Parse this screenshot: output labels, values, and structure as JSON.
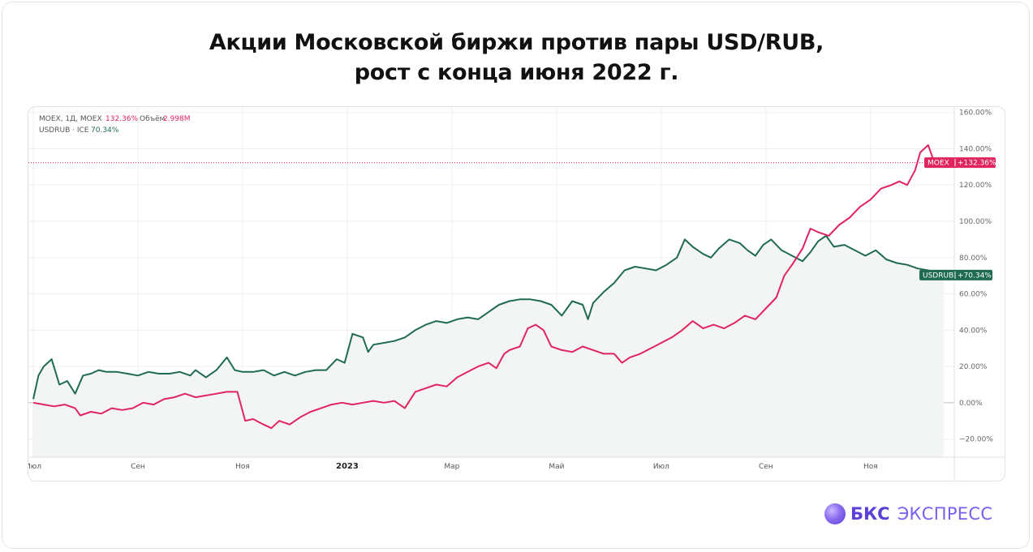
{
  "title": {
    "line1": "Акции Московской биржи против пары USD/RUB,",
    "line2": "рост с конца июня 2022 г."
  },
  "legend": {
    "moex": {
      "prefix": "MOEX, 1Д, MOEX",
      "value": "132.36%",
      "volume_label": "Объём",
      "volume_value": "2.998M"
    },
    "usdrub": {
      "prefix": "USDRUB · ICE",
      "value": "70.34%"
    }
  },
  "brand": {
    "name_bold": "БКС",
    "name_regular": "ЭКСПРЕСС"
  },
  "colors": {
    "moex": "#e0245e",
    "usdrub": "#1f6b52",
    "area_fill": "#f2f5f3"
  },
  "chart_data": {
    "type": "line",
    "title": "Акции Московской биржи против пары USD/RUB, рост с конца июня 2022 г.",
    "xlabel": "",
    "ylabel": "",
    "ylim": [
      -30,
      163
    ],
    "yticks": [
      -20,
      0,
      20,
      40,
      60,
      80,
      100,
      120,
      140,
      160
    ],
    "ytick_labels": [
      "−20.00%",
      "0.00%",
      "20.00%",
      "40.00%",
      "60.00%",
      "80.00%",
      "100.00%",
      "120.00%",
      "140.00%",
      "160.00%"
    ],
    "x_ticks": [
      {
        "label": "Июл",
        "t": 0,
        "bold": false
      },
      {
        "label": "Сен",
        "t": 2,
        "bold": false
      },
      {
        "label": "Ноя",
        "t": 4,
        "bold": false
      },
      {
        "label": "2023",
        "t": 6,
        "bold": true
      },
      {
        "label": "Мар",
        "t": 8,
        "bold": false
      },
      {
        "label": "Май",
        "t": 10,
        "bold": false
      },
      {
        "label": "Июл",
        "t": 12,
        "bold": false
      },
      {
        "label": "Сен",
        "t": 14,
        "bold": false
      },
      {
        "label": "Ноя",
        "t": 16,
        "bold": false
      }
    ],
    "x_unit": "months since end of June 2022",
    "xlim": [
      0,
      17.6
    ],
    "grid": true,
    "series": [
      {
        "name": "MOEX",
        "last_value_label": "+132.36%",
        "points": [
          [
            0,
            0
          ],
          [
            0.2,
            -1
          ],
          [
            0.4,
            -2
          ],
          [
            0.6,
            -1
          ],
          [
            0.8,
            -3
          ],
          [
            0.9,
            -7
          ],
          [
            1.1,
            -5
          ],
          [
            1.3,
            -6
          ],
          [
            1.5,
            -3
          ],
          [
            1.7,
            -4
          ],
          [
            1.9,
            -3
          ],
          [
            2.1,
            0
          ],
          [
            2.3,
            -1
          ],
          [
            2.5,
            2
          ],
          [
            2.7,
            3
          ],
          [
            2.9,
            5
          ],
          [
            3.1,
            3
          ],
          [
            3.3,
            4
          ],
          [
            3.5,
            5
          ],
          [
            3.7,
            6
          ],
          [
            3.9,
            6
          ],
          [
            4.05,
            -10
          ],
          [
            4.2,
            -9
          ],
          [
            4.4,
            -12
          ],
          [
            4.55,
            -14
          ],
          [
            4.7,
            -10
          ],
          [
            4.9,
            -12
          ],
          [
            5.1,
            -8
          ],
          [
            5.3,
            -5
          ],
          [
            5.5,
            -3
          ],
          [
            5.7,
            -1
          ],
          [
            5.9,
            0
          ],
          [
            6.1,
            -1
          ],
          [
            6.3,
            0
          ],
          [
            6.5,
            1
          ],
          [
            6.7,
            0
          ],
          [
            6.9,
            1
          ],
          [
            7.1,
            -3
          ],
          [
            7.3,
            6
          ],
          [
            7.5,
            8
          ],
          [
            7.7,
            10
          ],
          [
            7.9,
            9
          ],
          [
            8.1,
            14
          ],
          [
            8.3,
            17
          ],
          [
            8.5,
            20
          ],
          [
            8.7,
            22
          ],
          [
            8.85,
            19
          ],
          [
            9.0,
            27
          ],
          [
            9.1,
            29
          ],
          [
            9.3,
            31
          ],
          [
            9.45,
            41
          ],
          [
            9.6,
            43
          ],
          [
            9.75,
            40
          ],
          [
            9.9,
            31
          ],
          [
            10.1,
            29
          ],
          [
            10.3,
            28
          ],
          [
            10.5,
            31
          ],
          [
            10.7,
            29
          ],
          [
            10.9,
            27
          ],
          [
            11.1,
            27
          ],
          [
            11.25,
            22
          ],
          [
            11.4,
            25
          ],
          [
            11.6,
            27
          ],
          [
            11.8,
            30
          ],
          [
            12.0,
            33
          ],
          [
            12.2,
            36
          ],
          [
            12.4,
            40
          ],
          [
            12.6,
            45
          ],
          [
            12.8,
            41
          ],
          [
            13.0,
            43
          ],
          [
            13.2,
            41
          ],
          [
            13.4,
            44
          ],
          [
            13.6,
            48
          ],
          [
            13.8,
            46
          ],
          [
            14.0,
            52
          ],
          [
            14.2,
            58
          ],
          [
            14.35,
            70
          ],
          [
            14.5,
            76
          ],
          [
            14.7,
            85
          ],
          [
            14.85,
            96
          ],
          [
            15.0,
            94
          ],
          [
            15.2,
            92
          ],
          [
            15.4,
            98
          ],
          [
            15.6,
            102
          ],
          [
            15.8,
            108
          ],
          [
            16.0,
            112
          ],
          [
            16.2,
            118
          ],
          [
            16.4,
            120
          ],
          [
            16.55,
            122
          ],
          [
            16.7,
            120
          ],
          [
            16.85,
            128
          ],
          [
            16.95,
            138
          ],
          [
            17.1,
            142
          ],
          [
            17.25,
            130
          ],
          [
            17.4,
            132.36
          ]
        ]
      },
      {
        "name": "USDRUB",
        "last_value_label": "+70.34%",
        "points": [
          [
            0,
            2
          ],
          [
            0.1,
            15
          ],
          [
            0.2,
            20
          ],
          [
            0.35,
            24
          ],
          [
            0.5,
            10
          ],
          [
            0.65,
            12
          ],
          [
            0.8,
            5
          ],
          [
            0.95,
            15
          ],
          [
            1.1,
            16
          ],
          [
            1.25,
            18
          ],
          [
            1.4,
            17
          ],
          [
            1.6,
            17
          ],
          [
            1.8,
            16
          ],
          [
            2.0,
            15
          ],
          [
            2.2,
            17
          ],
          [
            2.4,
            16
          ],
          [
            2.6,
            16
          ],
          [
            2.8,
            17
          ],
          [
            3.0,
            15
          ],
          [
            3.1,
            18
          ],
          [
            3.3,
            14
          ],
          [
            3.5,
            18
          ],
          [
            3.7,
            25
          ],
          [
            3.85,
            18
          ],
          [
            4.0,
            17
          ],
          [
            4.2,
            17
          ],
          [
            4.4,
            18
          ],
          [
            4.6,
            15
          ],
          [
            4.8,
            17
          ],
          [
            5.0,
            15
          ],
          [
            5.2,
            17
          ],
          [
            5.4,
            18
          ],
          [
            5.6,
            18
          ],
          [
            5.8,
            24
          ],
          [
            5.95,
            22
          ],
          [
            6.1,
            38
          ],
          [
            6.3,
            36
          ],
          [
            6.4,
            28
          ],
          [
            6.5,
            32
          ],
          [
            6.7,
            33
          ],
          [
            6.9,
            34
          ],
          [
            7.1,
            36
          ],
          [
            7.3,
            40
          ],
          [
            7.5,
            43
          ],
          [
            7.7,
            45
          ],
          [
            7.9,
            44
          ],
          [
            8.1,
            46
          ],
          [
            8.3,
            47
          ],
          [
            8.5,
            46
          ],
          [
            8.7,
            50
          ],
          [
            8.9,
            54
          ],
          [
            9.1,
            56
          ],
          [
            9.3,
            57
          ],
          [
            9.5,
            57
          ],
          [
            9.7,
            56
          ],
          [
            9.9,
            54
          ],
          [
            10.1,
            48
          ],
          [
            10.3,
            56
          ],
          [
            10.5,
            54
          ],
          [
            10.6,
            46
          ],
          [
            10.7,
            55
          ],
          [
            10.9,
            61
          ],
          [
            11.1,
            66
          ],
          [
            11.3,
            73
          ],
          [
            11.5,
            75
          ],
          [
            11.7,
            74
          ],
          [
            11.9,
            73
          ],
          [
            12.1,
            76
          ],
          [
            12.3,
            80
          ],
          [
            12.45,
            90
          ],
          [
            12.6,
            86
          ],
          [
            12.8,
            82
          ],
          [
            12.95,
            80
          ],
          [
            13.1,
            85
          ],
          [
            13.3,
            90
          ],
          [
            13.5,
            88
          ],
          [
            13.65,
            84
          ],
          [
            13.8,
            81
          ],
          [
            13.95,
            87
          ],
          [
            14.1,
            90
          ],
          [
            14.3,
            84
          ],
          [
            14.5,
            81
          ],
          [
            14.7,
            78
          ],
          [
            14.85,
            83
          ],
          [
            15.0,
            89
          ],
          [
            15.15,
            92
          ],
          [
            15.3,
            86
          ],
          [
            15.5,
            87
          ],
          [
            15.7,
            84
          ],
          [
            15.9,
            81
          ],
          [
            16.1,
            84
          ],
          [
            16.3,
            79
          ],
          [
            16.5,
            77
          ],
          [
            16.7,
            76
          ],
          [
            16.9,
            74
          ],
          [
            17.1,
            73
          ],
          [
            17.25,
            72
          ],
          [
            17.4,
            70.34
          ]
        ]
      }
    ]
  }
}
